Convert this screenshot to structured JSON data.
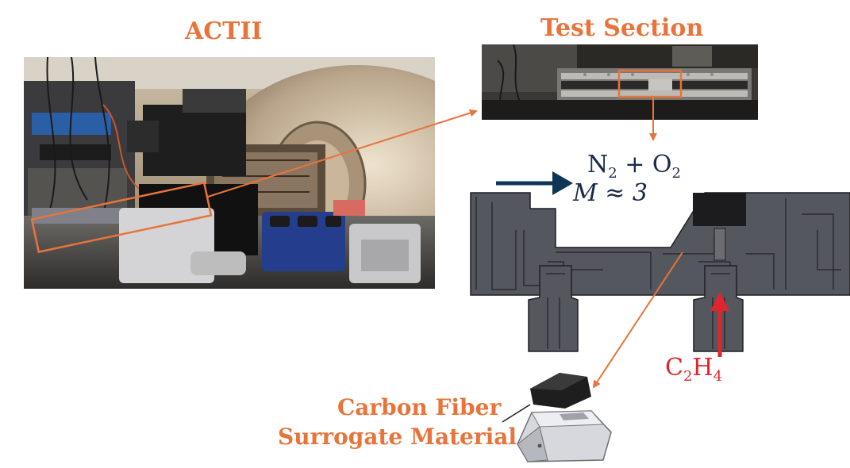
{
  "labels": {
    "actii": "ACTII",
    "test_section": "Test Section",
    "surrogate_line1": "Carbon Fiber",
    "surrogate_line2": "Surrogate Material"
  },
  "flow": {
    "gas_base1": "N",
    "gas_sub1": "2",
    "gas_plus": " + O",
    "gas_sub2": "2",
    "mach": "M ≈ 3"
  },
  "fuel": {
    "base1": "C",
    "sub1": "2",
    "base2": "H",
    "sub2": "4"
  },
  "colors": {
    "accent_orange": "#E8743B",
    "fuel_red": "#E1252C",
    "flow_navy": "#0E3553",
    "cad_gray": "#55575E"
  }
}
